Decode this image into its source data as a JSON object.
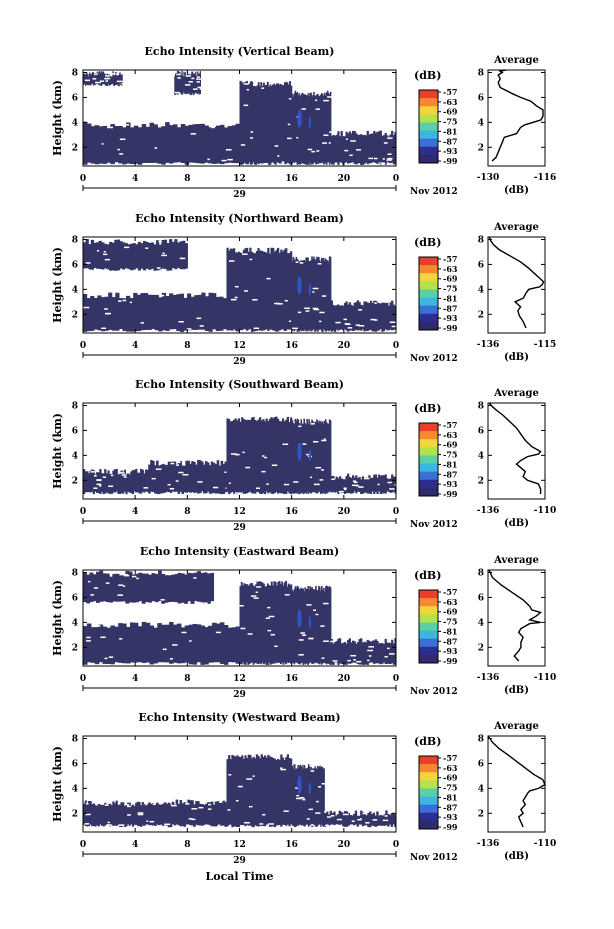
{
  "figure": {
    "x_axis_title": "Local Time",
    "month_label": "Nov 2012",
    "day_label": "29",
    "colorbar_unit": "(dB)",
    "colorbar_ticks": [
      "-57",
      "-63",
      "-69",
      "-75",
      "-81",
      "-87",
      "-93",
      "-99"
    ],
    "colorbar_colors": [
      "#e8402a",
      "#f7882f",
      "#f2d53c",
      "#b5e24a",
      "#5bd0a7",
      "#3ab6e0",
      "#3a6fd8",
      "#2c2f8f",
      "#2e2a6b"
    ],
    "contour_fill_color": "#343466",
    "core_color": "#2f55c8",
    "average_title": "Average",
    "average_unit": "(dB)"
  },
  "chart_data": [
    {
      "type": "heatmap",
      "title": "Echo Intensity (Vertical Beam)",
      "xlabel": "",
      "ylabel": "Height (km)",
      "xlim": [
        0,
        24
      ],
      "ylim": [
        0.5,
        8.2
      ],
      "xticks": [
        "0",
        "4",
        "8",
        "12",
        "16",
        "20",
        "0"
      ],
      "yticks": [
        "2",
        "4",
        "6",
        "8"
      ],
      "colorbar": {
        "unit": "dB",
        "range": [
          -99,
          -57
        ]
      },
      "bands": [
        {
          "x": [
            0,
            12
          ],
          "y": [
            0.7,
            3.9
          ]
        },
        {
          "x": [
            12,
            16
          ],
          "y": [
            0.7,
            7.2
          ]
        },
        {
          "x": [
            16,
            19
          ],
          "y": [
            0.7,
            6.4
          ]
        },
        {
          "x": [
            19,
            24
          ],
          "y": [
            0.7,
            3.2
          ]
        },
        {
          "x": [
            0,
            3
          ],
          "y": [
            7.0,
            8.0
          ]
        },
        {
          "x": [
            7,
            9
          ],
          "y": [
            6.3,
            8.0
          ]
        }
      ]
    },
    {
      "type": "heatmap",
      "title": "Echo Intensity (Northward Beam)",
      "xlabel": "",
      "ylabel": "Height (km)",
      "xlim": [
        0,
        24
      ],
      "ylim": [
        0.5,
        8.2
      ],
      "xticks": [
        "0",
        "4",
        "8",
        "12",
        "16",
        "20",
        "0"
      ],
      "yticks": [
        "2",
        "4",
        "6",
        "8"
      ],
      "colorbar": {
        "unit": "dB",
        "range": [
          -99,
          -57
        ]
      },
      "bands": [
        {
          "x": [
            0,
            11
          ],
          "y": [
            0.7,
            3.6
          ]
        },
        {
          "x": [
            11,
            16
          ],
          "y": [
            0.7,
            7.2
          ]
        },
        {
          "x": [
            16,
            19
          ],
          "y": [
            0.7,
            6.5
          ]
        },
        {
          "x": [
            19,
            24
          ],
          "y": [
            0.7,
            3.0
          ]
        },
        {
          "x": [
            0,
            8
          ],
          "y": [
            5.6,
            7.9
          ]
        }
      ]
    },
    {
      "type": "heatmap",
      "title": "Echo Intensity (Southward Beam)",
      "xlabel": "",
      "ylabel": "Height (km)",
      "xlim": [
        0,
        24
      ],
      "ylim": [
        0.5,
        8.2
      ],
      "xticks": [
        "0",
        "4",
        "8",
        "12",
        "16",
        "20",
        "0"
      ],
      "yticks": [
        "2",
        "4",
        "6",
        "8"
      ],
      "colorbar": {
        "unit": "dB",
        "range": [
          -99,
          -57
        ]
      },
      "bands": [
        {
          "x": [
            0,
            5
          ],
          "y": [
            1.0,
            2.8
          ]
        },
        {
          "x": [
            5,
            11
          ],
          "y": [
            1.0,
            3.5
          ]
        },
        {
          "x": [
            11,
            16
          ],
          "y": [
            1.0,
            7.0
          ]
        },
        {
          "x": [
            16,
            19
          ],
          "y": [
            1.0,
            6.8
          ]
        },
        {
          "x": [
            19,
            24
          ],
          "y": [
            1.0,
            2.4
          ]
        }
      ]
    },
    {
      "type": "heatmap",
      "title": "Echo Intensity (Eastward Beam)",
      "xlabel": "",
      "ylabel": "Height (km)",
      "xlim": [
        0,
        24
      ],
      "ylim": [
        0.5,
        8.2
      ],
      "xticks": [
        "0",
        "4",
        "8",
        "12",
        "16",
        "20",
        "0"
      ],
      "yticks": [
        "2",
        "4",
        "6",
        "8"
      ],
      "colorbar": {
        "unit": "dB",
        "range": [
          -99,
          -57
        ]
      },
      "bands": [
        {
          "x": [
            0,
            12
          ],
          "y": [
            0.7,
            3.9
          ]
        },
        {
          "x": [
            12,
            16
          ],
          "y": [
            0.7,
            7.2
          ]
        },
        {
          "x": [
            16,
            19
          ],
          "y": [
            0.7,
            6.8
          ]
        },
        {
          "x": [
            19,
            24
          ],
          "y": [
            0.7,
            2.6
          ]
        },
        {
          "x": [
            0,
            10
          ],
          "y": [
            5.6,
            8.0
          ]
        }
      ]
    },
    {
      "type": "heatmap",
      "title": "Echo Intensity (Westward Beam)",
      "xlabel": "Local Time",
      "ylabel": "Height (km)",
      "xlim": [
        0,
        24
      ],
      "ylim": [
        0.5,
        8.2
      ],
      "xticks": [
        "0",
        "4",
        "8",
        "12",
        "16",
        "20",
        "0"
      ],
      "yticks": [
        "2",
        "4",
        "6",
        "8"
      ],
      "colorbar": {
        "unit": "dB",
        "range": [
          -99,
          -57
        ]
      },
      "bands": [
        {
          "x": [
            0,
            5
          ],
          "y": [
            1.0,
            2.9
          ]
        },
        {
          "x": [
            5,
            11
          ],
          "y": [
            1.0,
            3.0
          ]
        },
        {
          "x": [
            11,
            16
          ],
          "y": [
            1.0,
            6.6
          ]
        },
        {
          "x": [
            16,
            18.5
          ],
          "y": [
            1.0,
            5.8
          ]
        },
        {
          "x": [
            18.5,
            24
          ],
          "y": [
            1.0,
            2.1
          ]
        }
      ]
    },
    {
      "type": "line",
      "title": "Average",
      "xlabel": "(dB)",
      "ylabel": "",
      "xlim": [
        -130,
        -116
      ],
      "ylim": [
        0.5,
        8.2
      ],
      "xticks": [
        "-130",
        "-116"
      ],
      "yticks": [
        "2",
        "4",
        "6",
        "8"
      ],
      "series": [
        {
          "x": [
            -129,
            -128,
            -127.5,
            -127,
            -126.5,
            -126,
            -123,
            -122,
            -121,
            -119,
            -117,
            -116.5,
            -116.5,
            -118,
            -119.5,
            -122,
            -124,
            -127,
            -127.5,
            -127,
            -127.5,
            -126.5,
            -127,
            -125.5,
            -125.5
          ],
          "y": [
            0.9,
            1.2,
            1.6,
            2.0,
            2.4,
            2.8,
            3.1,
            3.6,
            3.8,
            4.0,
            4.2,
            4.5,
            5.0,
            5.3,
            5.7,
            6.0,
            6.3,
            6.8,
            7.2,
            7.5,
            7.8,
            8.0,
            8.1,
            8.2,
            8.2
          ]
        }
      ]
    },
    {
      "type": "line",
      "title": "Average",
      "xlabel": "(dB)",
      "ylabel": "",
      "xlim": [
        -136,
        -115
      ],
      "ylim": [
        0.5,
        8.2
      ],
      "xticks": [
        "-136",
        "-115"
      ],
      "yticks": [
        "2",
        "4",
        "6",
        "8"
      ],
      "series": [
        {
          "x": [
            -122,
            -123,
            -124.5,
            -125,
            -124,
            -126,
            -123,
            -122,
            -121,
            -119,
            -117,
            -116,
            -115.5,
            -117,
            -119,
            -121,
            -124,
            -128,
            -132,
            -134,
            -135,
            -135.5
          ],
          "y": [
            0.9,
            1.4,
            1.9,
            2.3,
            2.6,
            3.0,
            3.3,
            3.7,
            4.0,
            4.1,
            4.2,
            4.4,
            4.6,
            4.9,
            5.3,
            5.7,
            6.2,
            6.7,
            7.2,
            7.6,
            7.9,
            8.2
          ]
        }
      ]
    },
    {
      "type": "line",
      "title": "Average",
      "xlabel": "(dB)",
      "ylabel": "",
      "xlim": [
        -136,
        -110
      ],
      "ylim": [
        0.5,
        8.2
      ],
      "xticks": [
        "-136",
        "-110"
      ],
      "yticks": [
        "2",
        "4",
        "6",
        "8"
      ],
      "series": [
        {
          "x": [
            -112,
            -112,
            -113,
            -118,
            -120,
            -119,
            -121,
            -123,
            -121,
            -118,
            -113,
            -112,
            -116,
            -119,
            -121,
            -123,
            -126,
            -129,
            -132,
            -134,
            -135.5
          ],
          "y": [
            0.9,
            1.3,
            1.7,
            2.0,
            2.3,
            2.7,
            3.0,
            3.3,
            3.6,
            3.9,
            4.1,
            4.3,
            4.7,
            5.2,
            5.7,
            6.2,
            6.7,
            7.2,
            7.6,
            7.9,
            8.2
          ]
        }
      ]
    },
    {
      "type": "line",
      "title": "Average",
      "xlabel": "(dB)",
      "ylabel": "",
      "xlim": [
        -136,
        -110
      ],
      "ylim": [
        0.5,
        8.2
      ],
      "xticks": [
        "-136",
        "-110"
      ],
      "yticks": [
        "2",
        "4",
        "6",
        "8"
      ],
      "series": [
        {
          "x": [
            -122,
            -124,
            -122,
            -121,
            -121,
            -120,
            -122,
            -121,
            -119,
            -117,
            -112,
            -117,
            -114,
            -112,
            -116,
            -117,
            -120,
            -125,
            -130,
            -134,
            -135.5
          ],
          "y": [
            0.9,
            1.3,
            1.7,
            2.0,
            2.4,
            2.8,
            3.2,
            3.5,
            3.7,
            3.9,
            4.0,
            4.2,
            4.5,
            4.8,
            5.0,
            5.3,
            5.8,
            6.4,
            7.0,
            7.6,
            8.2
          ]
        }
      ]
    },
    {
      "type": "line",
      "title": "Average",
      "xlabel": "(dB)",
      "ylabel": "",
      "xlim": [
        -136,
        -110
      ],
      "ylim": [
        0.5,
        8.2
      ],
      "xticks": [
        "-136",
        "-110"
      ],
      "yticks": [
        "2",
        "4",
        "6",
        "8"
      ],
      "series": [
        {
          "x": [
            -120,
            -121,
            -122,
            -120,
            -121,
            -119,
            -120,
            -119,
            -118,
            -117,
            -113,
            -110,
            -111,
            -115,
            -118,
            -121,
            -124,
            -127,
            -131,
            -134,
            -136
          ],
          "y": [
            0.9,
            1.3,
            1.7,
            2.0,
            2.3,
            2.7,
            3.0,
            3.3,
            3.6,
            3.8,
            4.0,
            4.3,
            4.7,
            5.1,
            5.5,
            5.9,
            6.3,
            6.7,
            7.2,
            7.7,
            8.2
          ]
        }
      ]
    }
  ]
}
